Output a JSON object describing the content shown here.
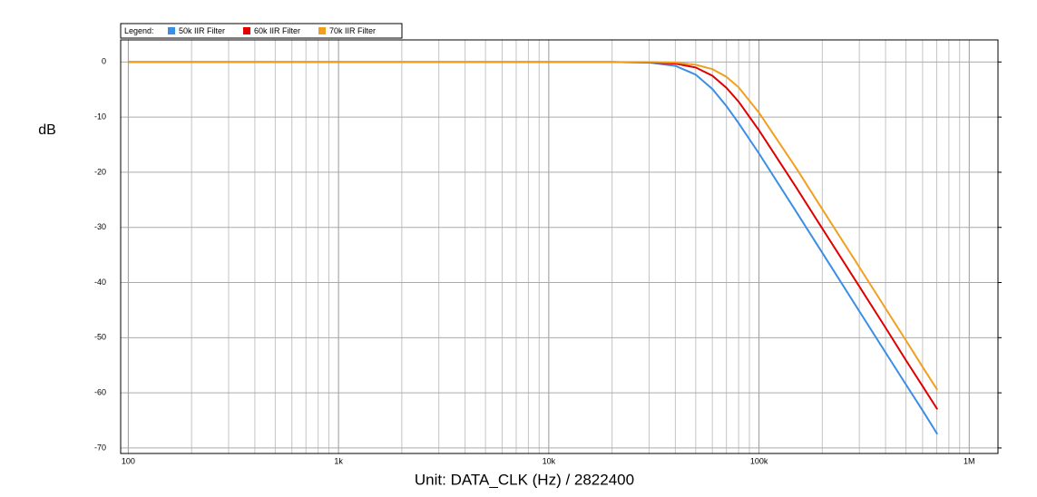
{
  "chart_data": {
    "type": "line",
    "x_label": "Unit: DATA_CLK (Hz) / 2822400",
    "y_label": "dB",
    "legend_title": "Legend:",
    "legend_position": "top-left",
    "x_log": true,
    "grid": true,
    "xlim": [
      92,
      1370000
    ],
    "ylim": [
      -71,
      4
    ],
    "xticks": [
      100,
      {
        "value": 1000,
        "label": "1k"
      },
      {
        "value": 10000,
        "label": "10k"
      },
      {
        "value": 100000,
        "label": "100k"
      },
      {
        "value": 1000000,
        "label": "1M"
      }
    ],
    "xminor_ticks": [
      200,
      300,
      400,
      500,
      600,
      700,
      800,
      900,
      2000,
      3000,
      4000,
      5000,
      6000,
      7000,
      8000,
      9000,
      20000,
      30000,
      40000,
      50000,
      60000,
      70000,
      80000,
      90000,
      200000,
      300000,
      400000,
      500000,
      600000,
      700000,
      800000,
      900000
    ],
    "yticks": [
      0,
      -10,
      -20,
      -30,
      -40,
      -50,
      -60,
      -70
    ],
    "x": [
      100,
      1000,
      10000,
      20000,
      30000,
      40000,
      50000,
      60000,
      70000,
      80000,
      100000,
      150000,
      200000,
      300000,
      400000,
      500000,
      600000,
      705600
    ],
    "series": [
      {
        "name": "50k IIR Filter",
        "color": "#3a8ee6",
        "values": [
          0,
          0,
          0,
          0,
          -0.1,
          -0.7,
          -2.3,
          -4.9,
          -8.0,
          -11.1,
          -16.6,
          -27.1,
          -34.6,
          -45.2,
          -52.7,
          -58.5,
          -63.2,
          -67.5
        ]
      },
      {
        "name": "60k IIR Filter",
        "color": "#e00000",
        "values": [
          0,
          0,
          0,
          0,
          -0.1,
          -0.3,
          -1.0,
          -2.5,
          -4.7,
          -7.2,
          -12.4,
          -22.7,
          -30.2,
          -40.7,
          -48.2,
          -54.1,
          -58.8,
          -63.0
        ]
      },
      {
        "name": "70k IIR Filter",
        "color": "#f0a020",
        "values": [
          0,
          0,
          0,
          0,
          0,
          -0.1,
          -0.5,
          -1.3,
          -2.7,
          -4.6,
          -9.2,
          -19.2,
          -26.7,
          -37.2,
          -44.7,
          -50.5,
          -55.3,
          -59.5
        ]
      }
    ]
  }
}
